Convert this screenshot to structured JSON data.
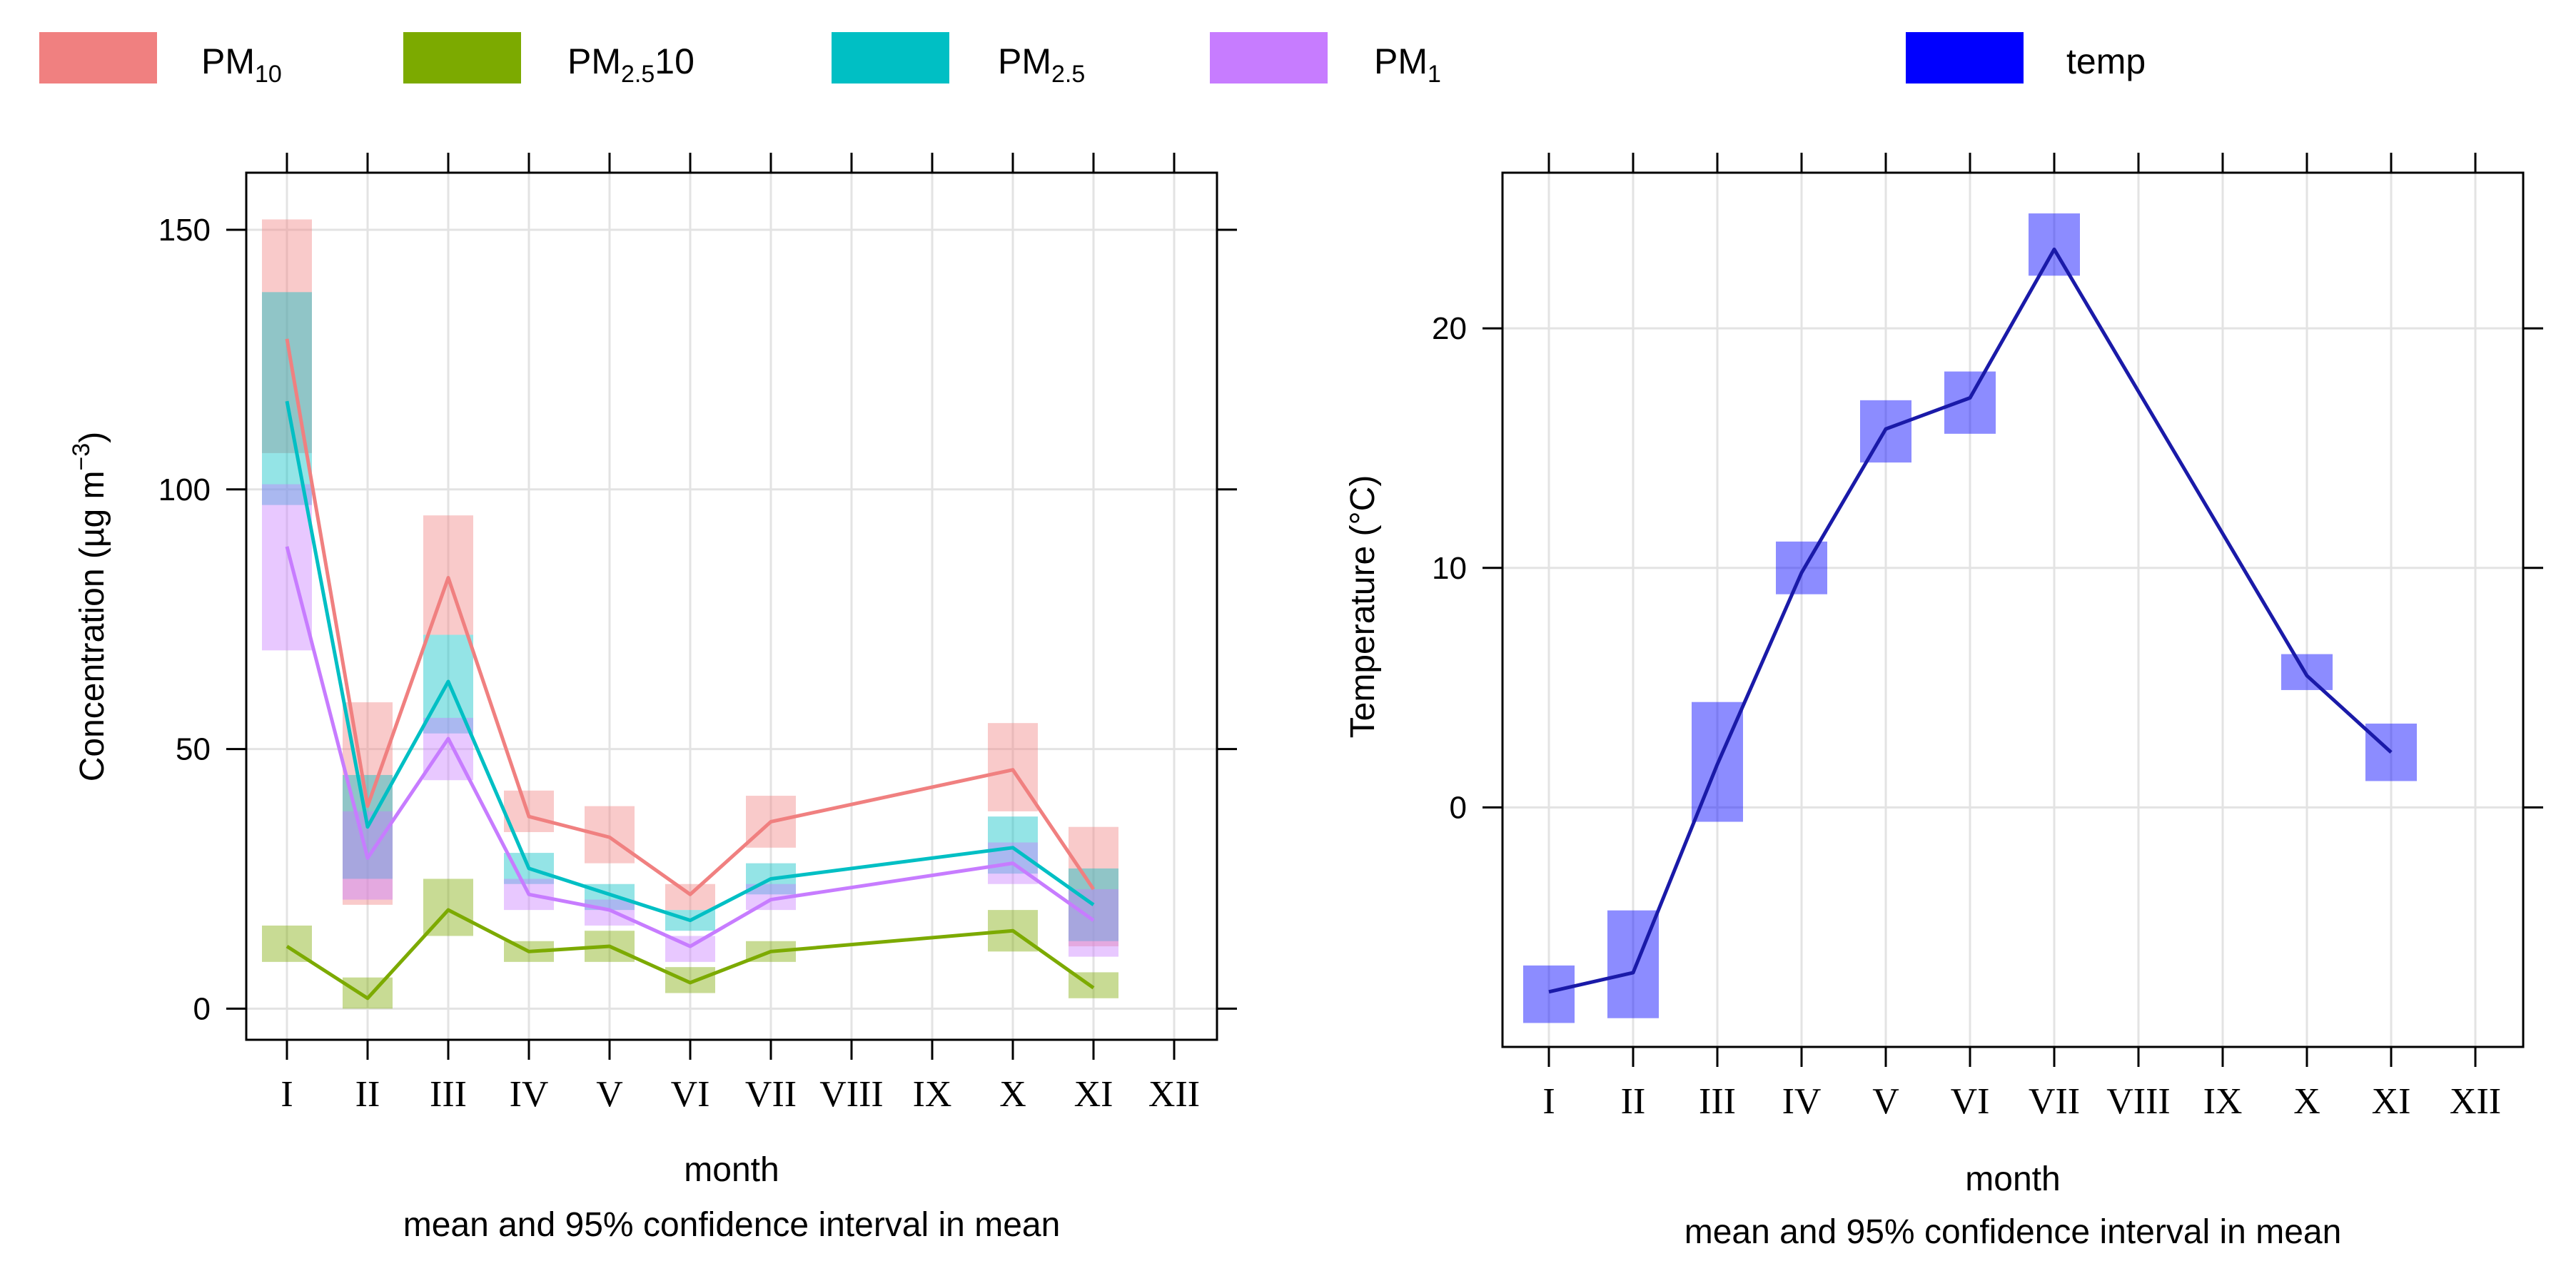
{
  "legend": {
    "items": [
      {
        "key": "pm10",
        "base": "PM",
        "sub": "10",
        "suffix": "",
        "color": "#F08080"
      },
      {
        "key": "pm25_10",
        "base": "PM",
        "sub": "2.5",
        "suffix": "10",
        "color": "#7CAA00"
      },
      {
        "key": "pm25",
        "base": "PM",
        "sub": "2.5",
        "suffix": "",
        "color": "#00BFC4"
      },
      {
        "key": "pm1",
        "base": "PM",
        "sub": "1",
        "suffix": "",
        "color": "#C77CFF"
      },
      {
        "key": "temp",
        "base": "temp",
        "sub": "",
        "suffix": "",
        "color": "#0000FF"
      }
    ]
  },
  "chart_data": [
    {
      "type": "line",
      "title": "",
      "xlabel": "month",
      "subtitle": "mean and 95% confidence interval in mean",
      "ylabel_parts": {
        "main": "Concentration (",
        "mu": "µ",
        "g": "g m",
        "exp": "−3",
        "close": ")"
      },
      "categories": [
        "I",
        "II",
        "III",
        "IV",
        "V",
        "VI",
        "VII",
        "VIII",
        "IX",
        "X",
        "XI",
        "XII"
      ],
      "ylim": [
        -6,
        161
      ],
      "yticks": [
        0,
        50,
        100,
        150
      ],
      "grid": true,
      "series": [
        {
          "name": "PM10",
          "color": "#F08080",
          "x": [
            1,
            2,
            3,
            4,
            5,
            6,
            7,
            10,
            11
          ],
          "mean": [
            129,
            39,
            83,
            37,
            33,
            22,
            36,
            46,
            23
          ],
          "lower": [
            107,
            20,
            72,
            34,
            28,
            19,
            31,
            38,
            12
          ],
          "upper": [
            152,
            59,
            95,
            42,
            39,
            24,
            41,
            55,
            35
          ]
        },
        {
          "name": "PM2.5-10",
          "color": "#7CAA00",
          "x": [
            1,
            2,
            3,
            4,
            5,
            6,
            7,
            10,
            11
          ],
          "mean": [
            12,
            2,
            19,
            11,
            12,
            5,
            11,
            15,
            4
          ],
          "lower": [
            9,
            0,
            14,
            9,
            9,
            3,
            9,
            11,
            2
          ],
          "upper": [
            16,
            6,
            25,
            13,
            15,
            8,
            13,
            19,
            7
          ]
        },
        {
          "name": "PM2.5",
          "color": "#00BFC4",
          "x": [
            1,
            2,
            3,
            4,
            5,
            6,
            7,
            10,
            11
          ],
          "mean": [
            117,
            35,
            63,
            27,
            22,
            17,
            25,
            31,
            20
          ],
          "lower": [
            97,
            25,
            53,
            24,
            19,
            15,
            22,
            26,
            13
          ],
          "upper": [
            138,
            45,
            72,
            30,
            24,
            19,
            28,
            37,
            27
          ]
        },
        {
          "name": "PM1",
          "color": "#C77CFF",
          "x": [
            1,
            2,
            3,
            4,
            5,
            6,
            7,
            10,
            11
          ],
          "mean": [
            89,
            29,
            52,
            22,
            19,
            12,
            21,
            28,
            17
          ],
          "lower": [
            69,
            21,
            44,
            19,
            16,
            9,
            19,
            24,
            10
          ],
          "upper": [
            101,
            38,
            56,
            25,
            21,
            14,
            24,
            32,
            23
          ]
        }
      ]
    },
    {
      "type": "line",
      "title": "",
      "xlabel": "month",
      "subtitle": "mean and 95% confidence interval in mean",
      "ylabel": "Temperature (°C)",
      "categories": [
        "I",
        "II",
        "III",
        "IV",
        "V",
        "VI",
        "VII",
        "VIII",
        "IX",
        "X",
        "XI",
        "XII"
      ],
      "ylim": [
        -10,
        26.5
      ],
      "yticks": [
        0,
        10,
        20
      ],
      "grid": true,
      "series": [
        {
          "name": "temp",
          "color": "#0000FF",
          "x": [
            1,
            2,
            3,
            4,
            5,
            6,
            7,
            10,
            11
          ],
          "mean": [
            -7.7,
            -6.9,
            1.8,
            9.8,
            15.8,
            17.1,
            23.3,
            5.5,
            2.3
          ],
          "lower": [
            -9.0,
            -8.8,
            -0.6,
            8.9,
            14.4,
            15.6,
            22.2,
            4.9,
            1.1
          ],
          "upper": [
            -6.6,
            -4.3,
            4.4,
            11.1,
            17.0,
            18.2,
            24.8,
            6.4,
            3.5
          ]
        }
      ]
    }
  ]
}
